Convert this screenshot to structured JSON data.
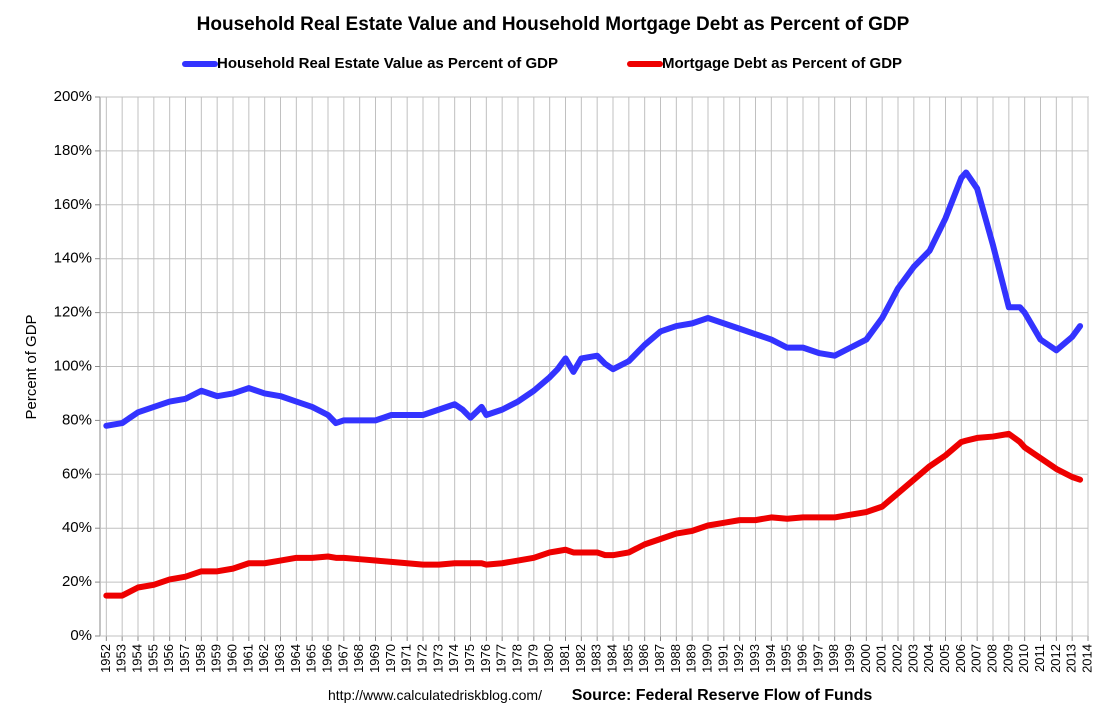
{
  "chart_data": {
    "type": "line",
    "title": "Household Real Estate Value and Household Mortgage Debt as Percent of GDP",
    "ylabel": "Percent of GDP",
    "source_url": "http://www.calculatedriskblog.com/",
    "source": "Source: Federal Reserve Flow of Funds",
    "x": [
      1952,
      1953,
      1954,
      1955,
      1956,
      1957,
      1958,
      1959,
      1960,
      1961,
      1962,
      1963,
      1964,
      1965,
      1966,
      1966.5,
      1967,
      1968,
      1969,
      1970,
      1971,
      1972,
      1973,
      1974,
      1974.5,
      1975,
      1975.7,
      1976,
      1977,
      1978,
      1979,
      1980,
      1980.5,
      1981,
      1981.5,
      1982,
      1983,
      1983.5,
      1984,
      1985,
      1986,
      1987,
      1988,
      1989,
      1990,
      1991,
      1992,
      1993,
      1994,
      1995,
      1996,
      1997,
      1998,
      1999,
      2000,
      2001,
      2002,
      2003,
      2004,
      2005,
      2006,
      2006.3,
      2007,
      2008,
      2009,
      2009.7,
      2010,
      2011,
      2012,
      2013,
      2013.5
    ],
    "series": [
      {
        "name": "Household Real Estate Value as Percent of GDP",
        "color": "#3333ff",
        "values": [
          78,
          79,
          83,
          85,
          87,
          88,
          91,
          89,
          90,
          92,
          90,
          89,
          87,
          85,
          82,
          79,
          80,
          80,
          80,
          82,
          82,
          82,
          84,
          86,
          84,
          81,
          85,
          82,
          84,
          87,
          91,
          96,
          99,
          103,
          98,
          103,
          104,
          101,
          99,
          102,
          108,
          113,
          115,
          116,
          118,
          116,
          114,
          112,
          110,
          107,
          107,
          105,
          104,
          107,
          110,
          118,
          129,
          137,
          143,
          155,
          170,
          172,
          166,
          145,
          122,
          122,
          120,
          110,
          106,
          111,
          115
        ]
      },
      {
        "name": "Mortgage Debt as Percent of GDP",
        "color": "#ee0000",
        "values": [
          15,
          15,
          18,
          19,
          21,
          22,
          24,
          24,
          25,
          27,
          27,
          28,
          29,
          29,
          29.5,
          29,
          29,
          28.5,
          28,
          27.5,
          27,
          26.5,
          26.5,
          27,
          27,
          27,
          27,
          26.5,
          27,
          28,
          29,
          31,
          31.5,
          32,
          31,
          31,
          31,
          30,
          30,
          31,
          34,
          36,
          38,
          39,
          41,
          42,
          43,
          43,
          44,
          43.5,
          44,
          44,
          44,
          45,
          46,
          48,
          53,
          58,
          63,
          67,
          72,
          72.5,
          73.5,
          74,
          75,
          72,
          70,
          66,
          62,
          59,
          58
        ]
      }
    ],
    "xlim": [
      1951.6,
      2014
    ],
    "xticks": [
      1952,
      1953,
      1954,
      1955,
      1956,
      1957,
      1958,
      1959,
      1960,
      1961,
      1962,
      1963,
      1964,
      1965,
      1966,
      1967,
      1968,
      1969,
      1970,
      1971,
      1972,
      1973,
      1974,
      1975,
      1976,
      1977,
      1978,
      1979,
      1980,
      1981,
      1982,
      1983,
      1984,
      1985,
      1986,
      1987,
      1988,
      1989,
      1990,
      1991,
      1992,
      1993,
      1994,
      1995,
      1996,
      1997,
      1998,
      1999,
      2000,
      2001,
      2002,
      2003,
      2004,
      2005,
      2006,
      2007,
      2008,
      2009,
      2010,
      2011,
      2012,
      2013,
      2014
    ],
    "ylim": [
      0,
      200
    ],
    "yticks": [
      {
        "value": 0,
        "label": "0%"
      },
      {
        "value": 20,
        "label": "20%"
      },
      {
        "value": 40,
        "label": "40%"
      },
      {
        "value": 60,
        "label": "60%"
      },
      {
        "value": 80,
        "label": "80%"
      },
      {
        "value": 100,
        "label": "100%"
      },
      {
        "value": 120,
        "label": "120%"
      },
      {
        "value": 140,
        "label": "140%"
      },
      {
        "value": 160,
        "label": "160%"
      },
      {
        "value": 180,
        "label": "180%"
      },
      {
        "value": 200,
        "label": "200%"
      }
    ],
    "grid": true,
    "legend": "top"
  }
}
